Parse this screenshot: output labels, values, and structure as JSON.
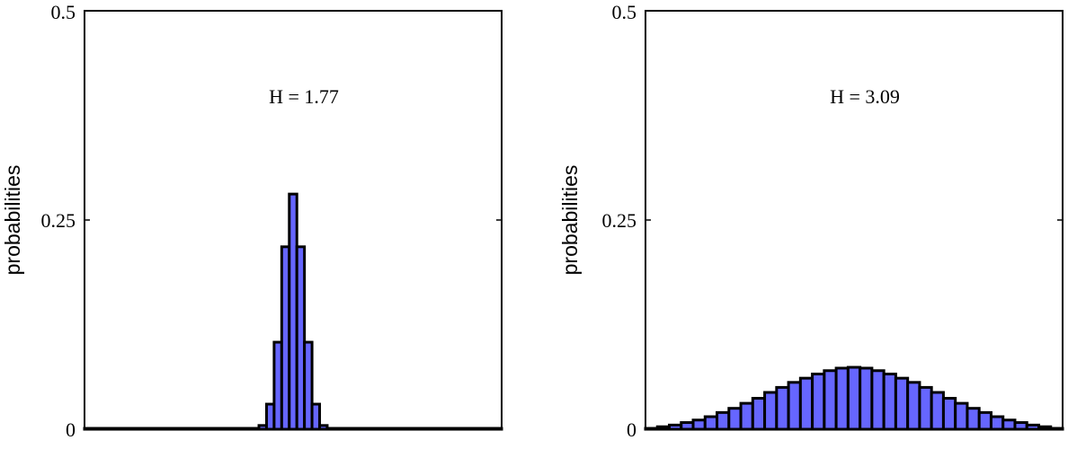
{
  "chart_data": [
    {
      "type": "bar",
      "title": "",
      "xlabel": "",
      "ylabel": "probabilities",
      "ylim": [
        0,
        0.5
      ],
      "yticks": [
        0,
        0.25,
        0.5
      ],
      "ytick_labels": [
        "0",
        "0.25",
        "0.5"
      ],
      "annotation": "H = 1.77",
      "bar_color": "#6666ff",
      "edge_color": "#000000",
      "values": [
        0.0001,
        0.0001,
        0.0001,
        0.0001,
        0.0001,
        0.0001,
        0.0001,
        0.0001,
        0.0001,
        0.0001,
        0.0001,
        0.0001,
        0.0001,
        0.0001,
        0.0001,
        0.0001,
        0.0001,
        0.0001,
        0.0001,
        0.0001,
        0.0001,
        0.0002,
        0.0004,
        0.0045,
        0.03,
        0.104,
        0.218,
        0.281,
        0.218,
        0.104,
        0.03,
        0.0045,
        0.0004,
        0.0002,
        0.0001,
        0.0001,
        0.0001,
        0.0001,
        0.0001,
        0.0001,
        0.0001,
        0.0001,
        0.0001,
        0.0001,
        0.0001,
        0.0001,
        0.0001,
        0.0001,
        0.0001,
        0.0001,
        0.0001,
        0.0001,
        0.0001,
        0.0001,
        0.0001
      ]
    },
    {
      "type": "bar",
      "title": "",
      "xlabel": "",
      "ylabel": "probabilities",
      "ylim": [
        0,
        0.5
      ],
      "yticks": [
        0,
        0.25,
        0.5
      ],
      "ytick_labels": [
        "0",
        "0.25",
        "0.5"
      ],
      "annotation": "H = 3.09",
      "bar_color": "#6666ff",
      "edge_color": "#000000",
      "values": [
        0.001,
        0.003,
        0.005,
        0.008,
        0.011,
        0.015,
        0.02,
        0.025,
        0.031,
        0.037,
        0.044,
        0.05,
        0.056,
        0.061,
        0.066,
        0.07,
        0.073,
        0.074,
        0.073,
        0.07,
        0.066,
        0.061,
        0.056,
        0.05,
        0.044,
        0.037,
        0.031,
        0.025,
        0.02,
        0.015,
        0.011,
        0.008,
        0.005,
        0.003,
        0.001
      ]
    }
  ]
}
